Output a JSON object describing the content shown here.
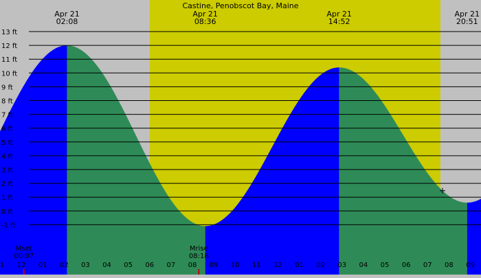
{
  "chart_data": {
    "type": "area",
    "title": "Castine, Penobscot Bay, Maine",
    "ylim": [
      -2,
      13
    ],
    "y_ticks": [
      -1,
      0,
      1,
      2,
      3,
      4,
      5,
      6,
      7,
      8,
      9,
      10,
      11,
      12,
      13
    ],
    "y_unit": "ft",
    "x_range_hours": [
      -1.0,
      21.5
    ],
    "hour_tick_labels": [
      "11",
      "12",
      "01",
      "02",
      "03",
      "04",
      "05",
      "06",
      "07",
      "08",
      "09",
      "10",
      "11",
      "12",
      "01",
      "02",
      "03",
      "04",
      "05",
      "06",
      "07",
      "08",
      "09"
    ],
    "daylight": {
      "start": "06:00",
      "end": "19:36"
    },
    "tide_events": [
      {
        "type": "high",
        "date": "Apr 21",
        "time": "02:08",
        "height_ft": 12.0
      },
      {
        "type": "low",
        "date": "Apr 21",
        "time": "08:36",
        "height_ft": -1.1
      },
      {
        "type": "high",
        "date": "Apr 21",
        "time": "14:52",
        "height_ft": 10.4
      },
      {
        "type": "low",
        "date": "Apr 21",
        "time": "20:51",
        "height_ft": 0.6
      }
    ],
    "markers": [
      {
        "label": "Mset",
        "time": "00:07"
      },
      {
        "label": "Mrise",
        "time": "08:18"
      }
    ],
    "colors": {
      "rising": "#0000ff",
      "falling": "#2e8b57",
      "day_bg": "#cccc00",
      "night_bg": "#c0c0c0",
      "grid": "#000000"
    }
  }
}
